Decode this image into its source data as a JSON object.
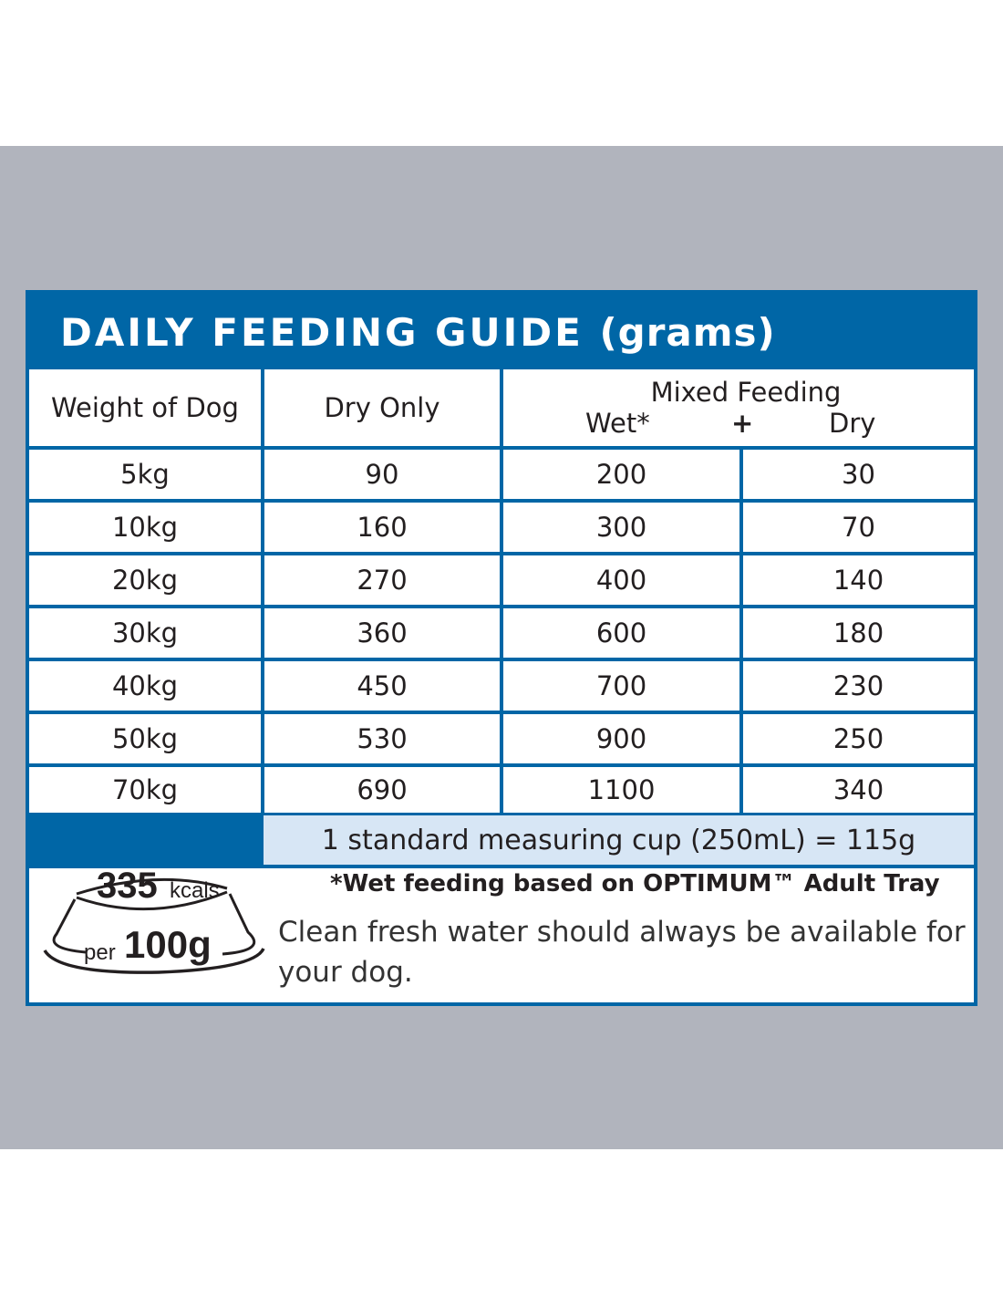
{
  "title": {
    "main": "DAILY FEEDING GUIDE",
    "unit": "(grams)"
  },
  "columns": {
    "weight": "Weight of Dog",
    "dry_only": "Dry Only",
    "mixed": "Mixed Feeding",
    "wet": "Wet*",
    "plus": "+",
    "dry": "Dry"
  },
  "rows": [
    {
      "weight": "5kg",
      "dry_only": "90",
      "wet": "200",
      "dry": "30"
    },
    {
      "weight": "10kg",
      "dry_only": "160",
      "wet": "300",
      "dry": "70"
    },
    {
      "weight": "20kg",
      "dry_only": "270",
      "wet": "400",
      "dry": "140"
    },
    {
      "weight": "30kg",
      "dry_only": "360",
      "wet": "600",
      "dry": "180"
    },
    {
      "weight": "40kg",
      "dry_only": "450",
      "wet": "700",
      "dry": "230"
    },
    {
      "weight": "50kg",
      "dry_only": "530",
      "wet": "900",
      "dry": "250"
    },
    {
      "weight": "70kg",
      "dry_only": "690",
      "wet": "1100",
      "dry": "340"
    }
  ],
  "cup_note": "1 standard measuring cup (250mL) = 115g",
  "wet_note": "*Wet feeding based on OPTIMUM™ Adult Tray",
  "water_note": "Clean fresh water should always be available for your dog.",
  "calories": {
    "value": "335",
    "unit": "kcals",
    "per": "per",
    "amount": "100g"
  },
  "colors": {
    "brand_blue": "#0066a6",
    "background_grey": "#b1b4bd",
    "cup_row": "#d7e6f5"
  }
}
